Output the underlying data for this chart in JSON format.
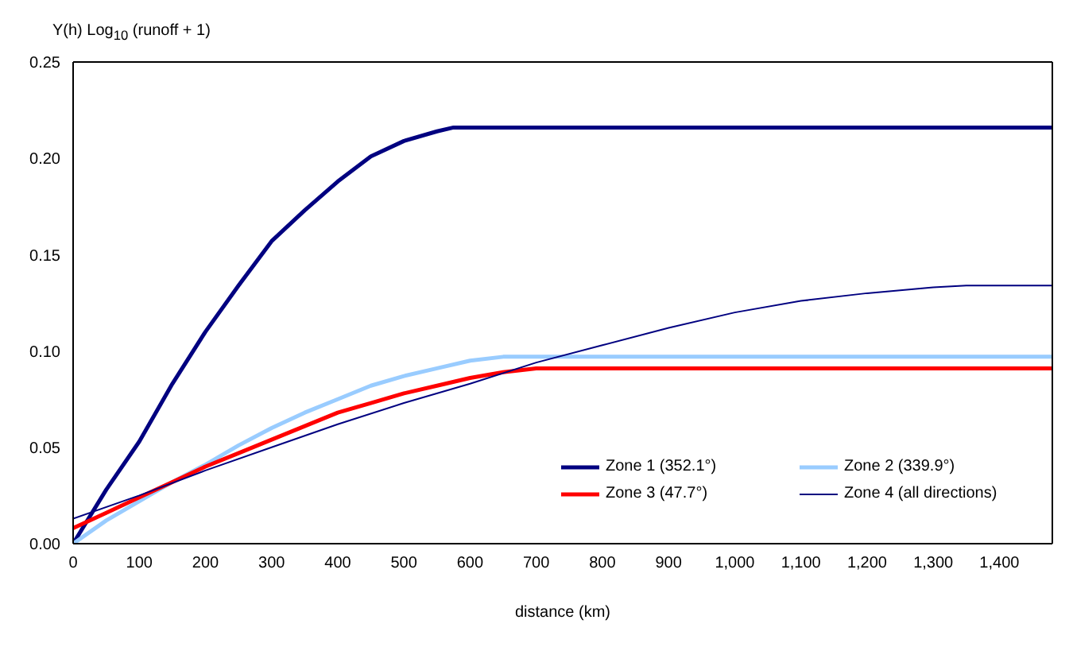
{
  "chart_data": {
    "type": "line",
    "ylabel": "Y(h) Log$_{10}$ (runoff + 1)",
    "xlabel": "distance (km)",
    "xlim": [
      0,
      1480
    ],
    "xticks": [
      0,
      100,
      200,
      300,
      400,
      500,
      600,
      700,
      800,
      900,
      {
        "value": 1000,
        "label": "1,000"
      },
      {
        "value": 1100,
        "label": "1,100"
      },
      {
        "value": 1200,
        "label": "1,200"
      },
      {
        "value": 1300,
        "label": "1,300"
      },
      {
        "value": 1400,
        "label": "1,400"
      }
    ],
    "ylim": [
      0,
      0.25
    ],
    "yticks": [
      {
        "value": 0,
        "label": "0.00"
      },
      {
        "value": 0.05,
        "label": "0.05"
      },
      {
        "value": 0.1,
        "label": "0.10"
      },
      {
        "value": 0.15,
        "label": "0.15"
      },
      {
        "value": 0.2,
        "label": "0.20"
      },
      {
        "value": 0.25,
        "label": "0.25"
      }
    ],
    "grid": false,
    "legend": "bottom right",
    "marker": "none",
    "line_style": "solid",
    "series": [
      {
        "name": "Zone 1 (352.1°)",
        "color": "#000080",
        "x": [
          0,
          50,
          100,
          150,
          200,
          250,
          300,
          350,
          400,
          450,
          500,
          550,
          575,
          600,
          1480
        ],
        "values": [
          0,
          0.028,
          0.053,
          0.083,
          0.11,
          0.134,
          0.157,
          0.173,
          0.188,
          0.201,
          0.209,
          0.214,
          0.216,
          0.216,
          0.216
        ]
      },
      {
        "name": "Zone 2 (339.9°)",
        "color": "#99ccff",
        "x": [
          0,
          50,
          100,
          150,
          200,
          250,
          300,
          350,
          400,
          450,
          500,
          550,
          600,
          650,
          1480
        ],
        "values": [
          0,
          0.012,
          0.022,
          0.032,
          0.041,
          0.051,
          0.06,
          0.068,
          0.075,
          0.082,
          0.087,
          0.091,
          0.095,
          0.097,
          0.097
        ]
      },
      {
        "name": "Zone 3 (47.7°)",
        "color": "#ff0000",
        "x": [
          0,
          50,
          100,
          150,
          200,
          250,
          300,
          350,
          400,
          450,
          500,
          550,
          600,
          650,
          700,
          1480
        ],
        "values": [
          0.008,
          0.016,
          0.024,
          0.032,
          0.04,
          0.047,
          0.054,
          0.061,
          0.068,
          0.073,
          0.078,
          0.082,
          0.086,
          0.089,
          0.091,
          0.091
        ]
      },
      {
        "name": "Zone 4 (all directions)",
        "color": "#000080",
        "x": [
          0,
          100,
          200,
          300,
          400,
          500,
          600,
          700,
          800,
          900,
          1000,
          1100,
          1200,
          1300,
          1350,
          1480
        ],
        "values": [
          0.013,
          0.025,
          0.038,
          0.05,
          0.062,
          0.073,
          0.083,
          0.094,
          0.103,
          0.112,
          0.12,
          0.126,
          0.13,
          0.133,
          0.134,
          0.134
        ]
      }
    ]
  }
}
